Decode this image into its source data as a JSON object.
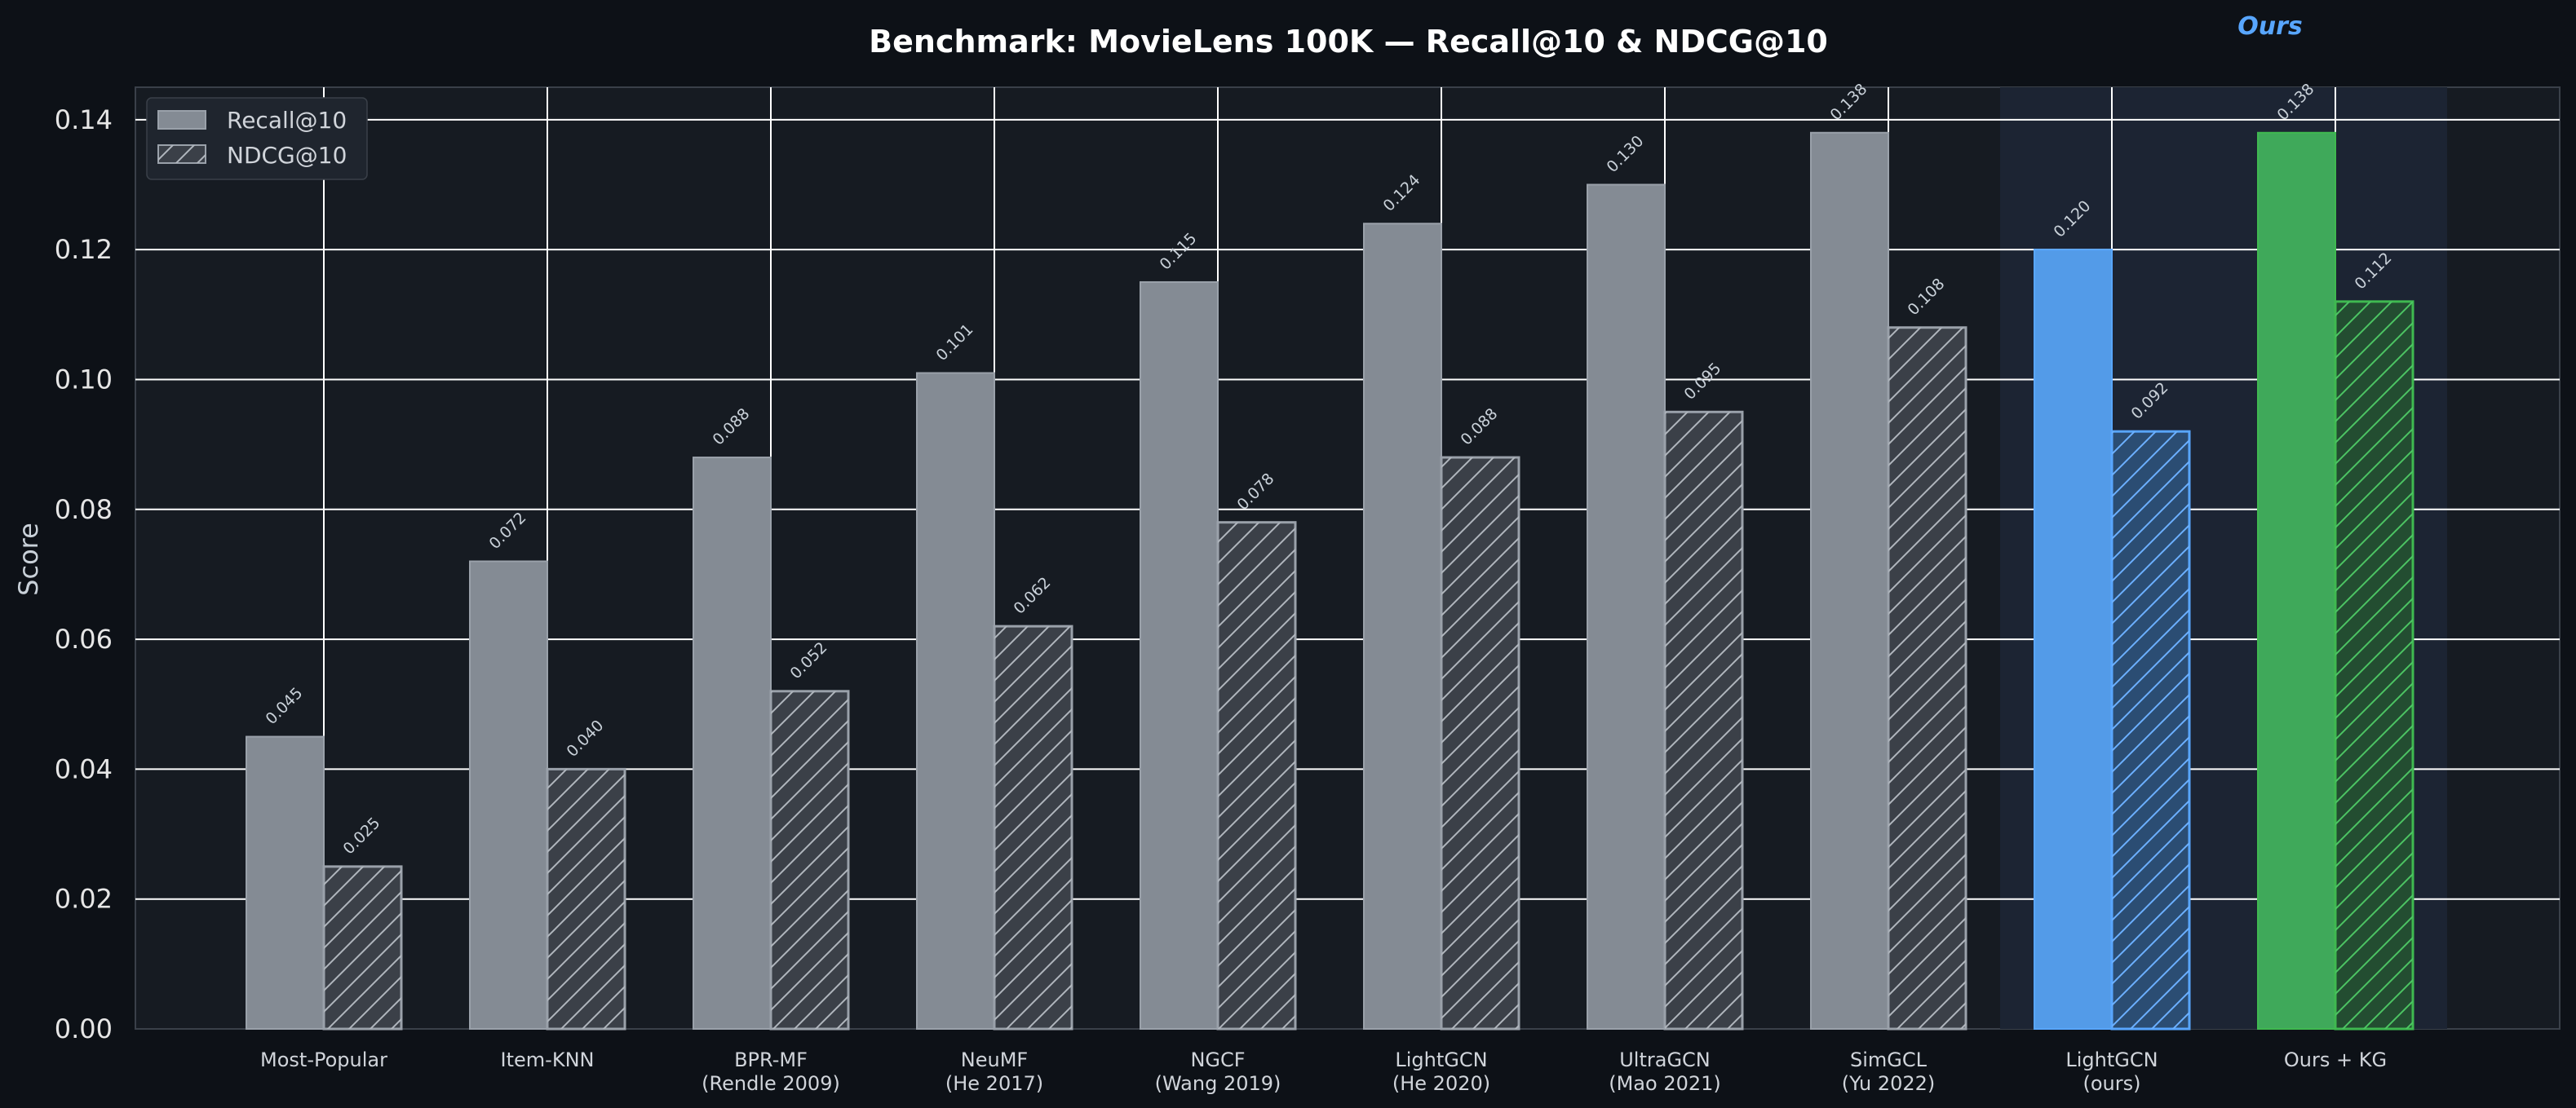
{
  "chart_data": {
    "type": "bar",
    "title": "Benchmark: MovieLens 100K — Recall@10 & NDCG@10",
    "ylabel": "Score",
    "xlabel": "",
    "ylim": [
      0,
      0.145
    ],
    "yticks": [
      "0.00",
      "0.02",
      "0.04",
      "0.06",
      "0.08",
      "0.10",
      "0.12",
      "0.14"
    ],
    "categories": [
      [
        "Most-Popular"
      ],
      [
        "Item-KNN"
      ],
      [
        "BPR-MF",
        "(Rendle 2009)"
      ],
      [
        "NeuMF",
        "(He 2017)"
      ],
      [
        "NGCF",
        "(Wang 2019)"
      ],
      [
        "LightGCN",
        "(He 2020)"
      ],
      [
        "UltraGCN",
        "(Mao 2021)"
      ],
      [
        "SimGCL",
        "(Yu 2022)"
      ],
      [
        "LightGCN",
        "(ours)"
      ],
      [
        "Ours + KG"
      ]
    ],
    "series": [
      {
        "name": "Recall@10",
        "style": "solid",
        "values": [
          0.045,
          0.072,
          0.088,
          0.101,
          0.115,
          0.124,
          0.13,
          0.138,
          0.12,
          0.138
        ]
      },
      {
        "name": "NDCG@10",
        "style": "hatched",
        "values": [
          0.025,
          0.04,
          0.052,
          0.062,
          0.078,
          0.088,
          0.095,
          0.108,
          0.092,
          0.112
        ]
      }
    ],
    "highlight": {
      "label": "Ours",
      "categories": [
        8,
        9
      ]
    },
    "colors": {
      "baseline": "#848b94",
      "baseline_edge": "#9aa1aa",
      "ours_blue": "#539be8",
      "ours_blue_edge": "#58a6ff",
      "ours_green": "#3fa95a",
      "ours_green_edge": "#3fb950",
      "grid": "#ffffff",
      "plot_bg": "#161b22",
      "page_bg": "#0d1117",
      "highlight_bg": "#1c2433"
    },
    "grid": true,
    "legend_position": "top-left"
  }
}
